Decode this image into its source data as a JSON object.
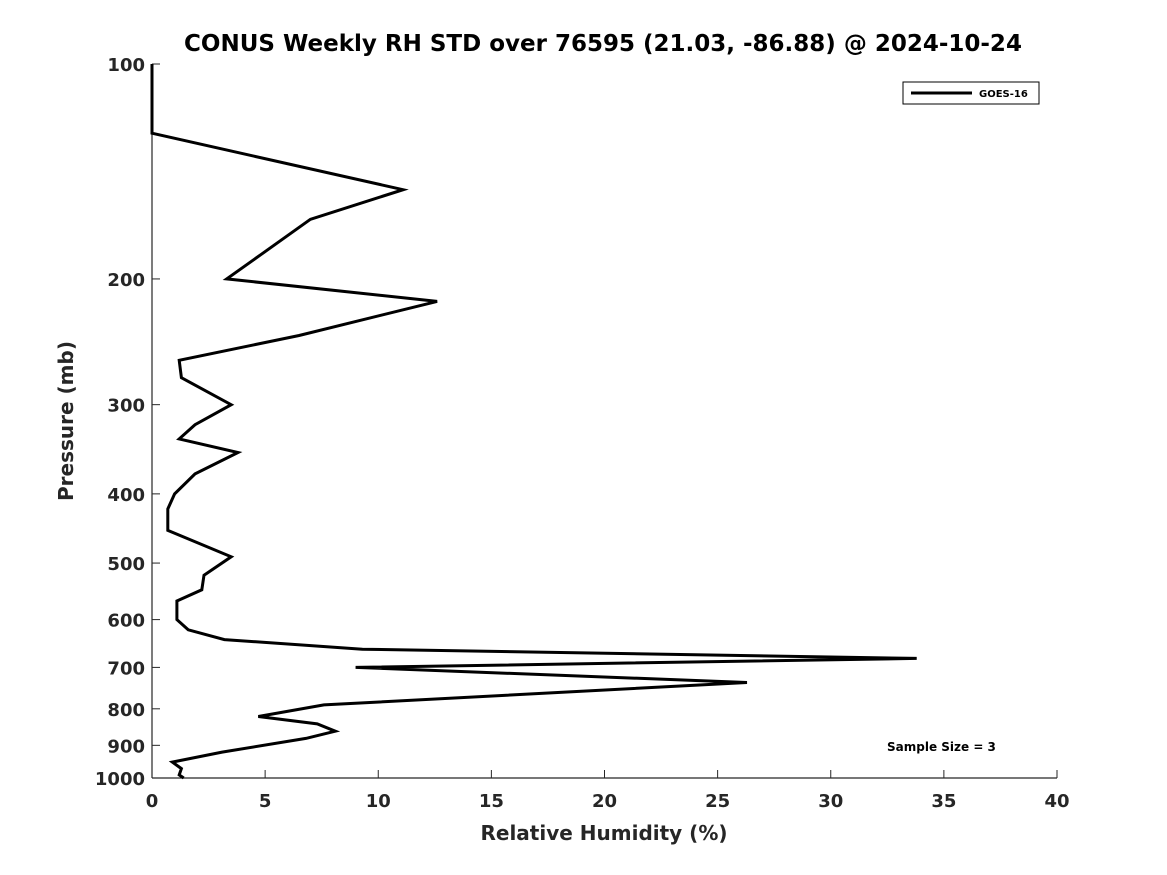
{
  "chart_data": {
    "type": "line",
    "title": "CONUS Weekly RH STD over 76595 (21.03, -86.88) @ 2024-10-24",
    "xlabel": "Relative Humidity (%)",
    "ylabel": "Pressure (mb)",
    "xlim": [
      0,
      40
    ],
    "ylim": [
      100,
      1000
    ],
    "yscale": "log",
    "y_reversed": true,
    "xticks": [
      0,
      5,
      10,
      15,
      20,
      25,
      30,
      35,
      40
    ],
    "yticks": [
      100,
      200,
      300,
      400,
      500,
      600,
      700,
      800,
      900,
      1000
    ],
    "grid": false,
    "legend_position": "top-right",
    "annotation": "Sample Size = 3",
    "series": [
      {
        "name": "GOES-16",
        "color": "#000000",
        "x": [
          0.0,
          0.0,
          11.1,
          7.0,
          4.8,
          3.3,
          12.6,
          6.5,
          1.2,
          1.3,
          3.5,
          1.9,
          1.2,
          3.8,
          1.9,
          1.0,
          0.7,
          0.7,
          3.5,
          2.3,
          2.2,
          1.1,
          1.1,
          1.6,
          3.2,
          9.3,
          33.8,
          9.0,
          26.3,
          7.6,
          4.7,
          7.3,
          8.1,
          6.8,
          3.1,
          0.9,
          1.3,
          1.2,
          1.4
        ],
        "y": [
          100,
          125,
          150,
          165,
          185,
          200,
          215,
          240,
          260,
          275,
          300,
          320,
          335,
          350,
          375,
          400,
          420,
          450,
          490,
          520,
          545,
          565,
          600,
          620,
          640,
          660,
          680,
          700,
          735,
          790,
          820,
          840,
          860,
          880,
          920,
          950,
          970,
          990,
          1000
        ]
      }
    ]
  }
}
